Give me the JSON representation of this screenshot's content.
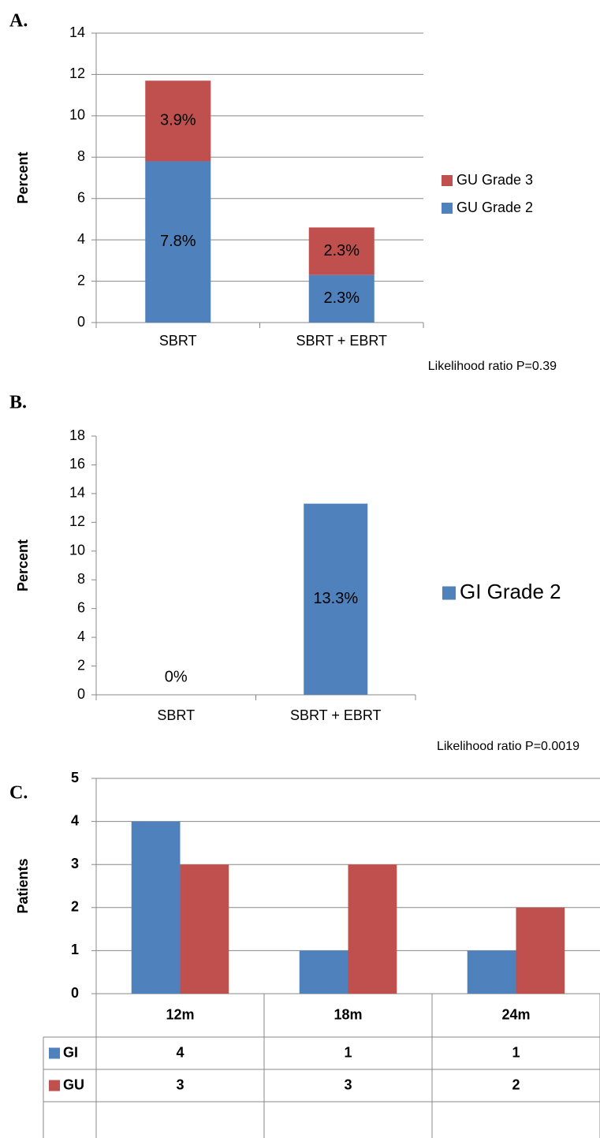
{
  "chart_data": [
    {
      "type": "bar",
      "label": "A.",
      "ylabel": "Percent",
      "stacked": true,
      "grid": true,
      "legend_position": "right",
      "note": "Likelihood ratio P=0.39",
      "categories": [
        "SBRT",
        "SBRT + EBRT"
      ],
      "series": [
        {
          "name": "GU Grade 2",
          "color": "#4f81bd",
          "values": [
            7.8,
            2.3
          ],
          "value_labels": [
            "7.8%",
            "2.3%"
          ]
        },
        {
          "name": "GU Grade 3",
          "color": "#c0504d",
          "values": [
            3.9,
            2.3
          ],
          "value_labels": [
            "3.9%",
            "2.3%"
          ]
        }
      ],
      "ylim": [
        0,
        14
      ],
      "yticks": [
        0,
        2,
        4,
        6,
        8,
        10,
        12,
        14
      ]
    },
    {
      "type": "bar",
      "label": "B.",
      "ylabel": "Percent",
      "stacked": false,
      "grid": false,
      "legend_position": "right",
      "note": "Likelihood ratio P=0.0019",
      "categories": [
        "SBRT",
        "SBRT + EBRT"
      ],
      "series": [
        {
          "name": "GI Grade 2",
          "color": "#4f81bd",
          "values": [
            0,
            13.3
          ],
          "value_labels": [
            "0%",
            "13.3%"
          ]
        }
      ],
      "ylim": [
        0,
        18
      ],
      "yticks": [
        0,
        2,
        4,
        6,
        8,
        10,
        12,
        14,
        16,
        18
      ]
    },
    {
      "type": "bar",
      "label": "C.",
      "ylabel": "Patients",
      "stacked": false,
      "grid": true,
      "data_table": true,
      "categories": [
        "12m",
        "18m",
        "24m"
      ],
      "series": [
        {
          "name": "GI",
          "color": "#4f81bd",
          "values": [
            4,
            1,
            1
          ]
        },
        {
          "name": "GU",
          "color": "#c0504d",
          "values": [
            3,
            3,
            2
          ]
        }
      ],
      "ylim": [
        0,
        5
      ],
      "yticks": [
        0,
        1,
        2,
        3,
        4,
        5
      ]
    }
  ]
}
